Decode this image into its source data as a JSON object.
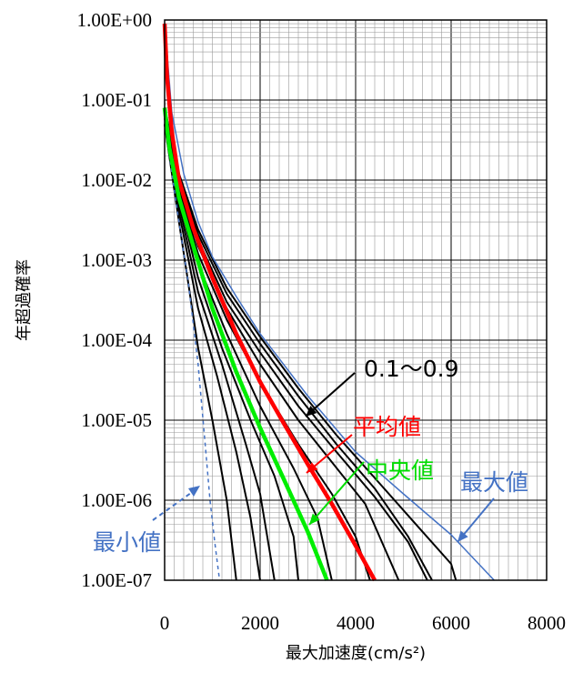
{
  "chart_data": {
    "type": "line",
    "title": "",
    "xlabel": "最大加速度(cm/s²)",
    "ylabel": "年超過確率",
    "xlim": [
      0,
      8000
    ],
    "ylim": [
      1e-07,
      1
    ],
    "y_scale": "log",
    "grid": true,
    "x_ticks": [
      0,
      2000,
      4000,
      6000,
      8000
    ],
    "x_tick_labels": [
      "0",
      "2000",
      "4000",
      "6000",
      "8000"
    ],
    "y_ticks": [
      1,
      0.1,
      0.01,
      0.001,
      0.0001,
      1e-05,
      1e-06,
      1e-07
    ],
    "y_tick_labels": [
      "1.00E+00",
      "1.00E-01",
      "1.00E-02",
      "1.00E-03",
      "1.00E-04",
      "1.00E-05",
      "1.00E-06",
      "1.00E-07"
    ],
    "annotations": [
      {
        "text": "0.1〜0.9",
        "color": "#000000"
      },
      {
        "text": "平均値",
        "color": "#ff0000"
      },
      {
        "text": "中央値",
        "color": "#00dd00"
      },
      {
        "text": "最大値",
        "color": "#4472c4"
      },
      {
        "text": "最小値",
        "color": "#4472c4"
      }
    ],
    "series": [
      {
        "name": "最大値",
        "color": "#4472c4",
        "style": "solid",
        "width": 1.5,
        "x": [
          0,
          150,
          400,
          700,
          1000,
          1500,
          2000,
          3000,
          4000,
          5000,
          6000,
          6900
        ],
        "y": [
          0.9,
          0.07,
          0.012,
          0.003,
          0.0011,
          0.00035,
          0.00012,
          2e-05,
          4e-06,
          1.2e-06,
          3.7e-07,
          1e-07
        ]
      },
      {
        "name": "最小値",
        "color": "#4472c4",
        "style": "dashed",
        "width": 1.5,
        "x": [
          0,
          100,
          300,
          500,
          700,
          850,
          950,
          1050,
          1150
        ],
        "y": [
          0.06,
          0.02,
          0.003,
          0.0005,
          5e-05,
          5e-06,
          1e-06,
          3e-07,
          1e-07
        ]
      },
      {
        "name": "平均値",
        "color": "#ff0000",
        "style": "solid",
        "width": 4.5,
        "x": [
          0,
          50,
          150,
          300,
          600,
          1000,
          1500,
          2000,
          2500,
          3000,
          3500,
          4000,
          4400
        ],
        "y": [
          0.9,
          0.2,
          0.04,
          0.01,
          0.0025,
          0.0006,
          0.00012,
          3e-05,
          9e-06,
          2.8e-06,
          9e-07,
          2.7e-07,
          1e-07
        ]
      },
      {
        "name": "中央値",
        "color": "#00ee00",
        "style": "solid",
        "width": 4.5,
        "x": [
          0,
          100,
          300,
          600,
          1000,
          1500,
          2000,
          2500,
          3000,
          3400
        ],
        "y": [
          0.08,
          0.025,
          0.006,
          0.0015,
          0.00025,
          4e-05,
          8e-06,
          1.8e-06,
          4e-07,
          1e-07
        ]
      },
      {
        "name": "",
        "color": "#000000",
        "style": "solid",
        "width": 2,
        "x": [
          0,
          300,
          700,
          1000,
          1300,
          1500
        ],
        "y": [
          0.05,
          0.003,
          8e-05,
          1e-05,
          1e-06,
          1e-07
        ]
      },
      {
        "name": "",
        "color": "#000000",
        "style": "solid",
        "width": 2,
        "x": [
          0,
          300,
          700,
          1100,
          1500,
          1800,
          2000
        ],
        "y": [
          0.05,
          0.004,
          0.00025,
          3.5e-05,
          4e-06,
          6e-07,
          1e-07
        ]
      },
      {
        "name": "",
        "color": "#000000",
        "style": "solid",
        "width": 2,
        "x": [
          0,
          300,
          700,
          1200,
          1700,
          2000,
          2300
        ],
        "y": [
          0.05,
          0.005,
          0.0004,
          5e-05,
          5e-06,
          1.2e-06,
          1e-07
        ]
      },
      {
        "name": "",
        "color": "#000000",
        "style": "solid",
        "width": 2,
        "x": [
          0,
          300,
          700,
          1200,
          1800,
          2300,
          2700,
          2800
        ],
        "y": [
          0.05,
          0.006,
          0.0006,
          8e-05,
          1e-05,
          2e-06,
          3.5e-07,
          1e-07
        ]
      },
      {
        "name": "",
        "color": "#000000",
        "style": "solid",
        "width": 2,
        "x": [
          0,
          300,
          700,
          1300,
          2000,
          2700,
          3200,
          3500
        ],
        "y": [
          0.06,
          0.007,
          0.0009,
          0.00012,
          1.5e-05,
          2.5e-06,
          6e-07,
          1e-07
        ]
      },
      {
        "name": "",
        "color": "#000000",
        "style": "solid",
        "width": 2,
        "x": [
          0,
          300,
          700,
          1300,
          2000,
          2800,
          3500,
          4000,
          4300
        ],
        "y": [
          0.06,
          0.008,
          0.0012,
          0.00018,
          3e-05,
          5e-06,
          1.2e-06,
          3.5e-07,
          1e-07
        ]
      },
      {
        "name": "",
        "color": "#000000",
        "style": "solid",
        "width": 2,
        "x": [
          0,
          300,
          700,
          1300,
          2000,
          2800,
          3500,
          4200,
          4900
        ],
        "y": [
          0.06,
          0.009,
          0.0015,
          0.00025,
          5e-05,
          1e-05,
          3e-06,
          9e-07,
          1e-07
        ]
      },
      {
        "name": "",
        "color": "#000000",
        "style": "solid",
        "width": 2,
        "x": [
          0,
          300,
          700,
          1300,
          2000,
          2800,
          3600,
          4400,
          5100,
          5500
        ],
        "y": [
          0.07,
          0.01,
          0.0018,
          0.0003,
          7e-05,
          1.5e-05,
          4e-06,
          1.1e-06,
          3e-07,
          1e-07
        ]
      },
      {
        "name": "",
        "color": "#000000",
        "style": "solid",
        "width": 2,
        "x": [
          0,
          300,
          700,
          1300,
          2000,
          2800,
          3600,
          4400,
          5100,
          5600
        ],
        "y": [
          0.07,
          0.011,
          0.0021,
          0.00038,
          9e-05,
          2e-05,
          5e-06,
          1.4e-06,
          3.5e-07,
          1e-07
        ]
      },
      {
        "name": "",
        "color": "#000000",
        "style": "solid",
        "width": 2,
        "x": [
          0,
          300,
          700,
          1300,
          2000,
          2800,
          3600,
          4400,
          5200,
          6000,
          6100
        ],
        "y": [
          0.08,
          0.012,
          0.0024,
          0.00045,
          0.00011,
          2.5e-05,
          6.5e-06,
          1.9e-06,
          5.5e-07,
          1.6e-07,
          1e-07
        ]
      }
    ]
  }
}
